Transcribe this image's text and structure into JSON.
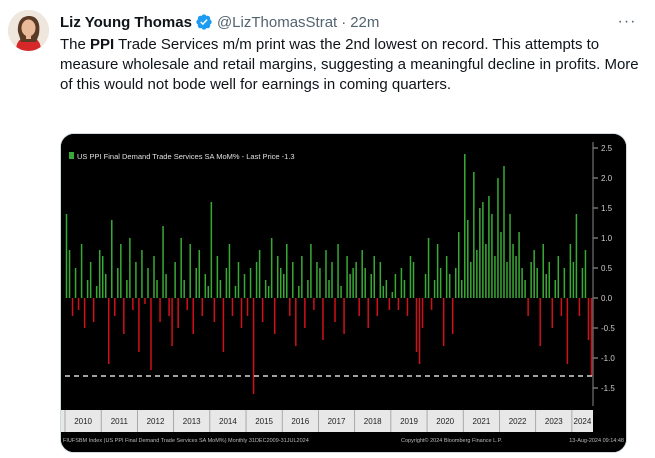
{
  "tweet": {
    "author_name": "Liz Young Thomas",
    "handle": "@LizThomasStrat",
    "separator": "·",
    "time": "22m",
    "more_label": "···",
    "text_before": "The ",
    "text_bold": "PPI",
    "text_after": " Trade Services m/m print was the 2nd lowest on record. This attempts to measure wholesale and retail margins, suggesting a meaningful decline in profits. More of this would not bode well for earnings in coming quarters."
  },
  "colors": {
    "verified": "#1d9bf0",
    "positive_bar": "#39a935",
    "negative_bar": "#d0101a",
    "chart_bg": "#000000"
  },
  "chart_data": {
    "type": "bar",
    "title": "US PPI Final Demand Trade Services SA MoM% - Last Price -1.3",
    "xlabel": "",
    "ylabel": "",
    "ylim": [
      -1.8,
      2.6
    ],
    "yticks": [
      2.5,
      2.0,
      1.5,
      1.0,
      0.5,
      0.0,
      -0.5,
      -1.0,
      -1.5
    ],
    "ytick_labels": [
      "2.5",
      "2.0",
      "1.5",
      "1.0",
      "0.5",
      "0.0",
      "-0.5",
      "-1.0",
      "-1.5"
    ],
    "reference_line": {
      "value": -1.3,
      "style": "dashed"
    },
    "years": [
      "2010",
      "2011",
      "2012",
      "2013",
      "2014",
      "2015",
      "2016",
      "2017",
      "2018",
      "2019",
      "2020",
      "2021",
      "2022",
      "2023",
      "2024"
    ],
    "footer_left": "FIUFSBM Index (US PPI Final Demand Trade Services SA MoM%) Monthly 31DEC2009-31JUL2024",
    "footer_center": "Copyright© 2024 Bloomberg Finance L.P.",
    "footer_right": "13-Aug-2024 09:14:48",
    "series": [
      {
        "name": "US PPI Final Demand Trade Services SA MoM%",
        "values": [
          1.4,
          0.8,
          -0.3,
          0.5,
          -0.2,
          0.9,
          -0.5,
          0.3,
          0.6,
          -0.4,
          0.2,
          0.8,
          0.7,
          0.4,
          -1.1,
          1.3,
          -0.3,
          0.5,
          0.9,
          -0.6,
          0.3,
          1.0,
          -0.2,
          0.6,
          -0.9,
          0.8,
          -0.1,
          0.5,
          -1.2,
          0.7,
          0.3,
          -0.4,
          1.2,
          0.4,
          -0.3,
          -0.8,
          0.6,
          -0.5,
          1.0,
          0.3,
          -0.2,
          0.9,
          -0.6,
          0.5,
          0.8,
          -0.3,
          0.4,
          0.2,
          1.6,
          -0.4,
          0.7,
          0.3,
          -0.9,
          0.5,
          0.9,
          -0.3,
          0.2,
          0.6,
          -0.5,
          0.4,
          -0.3,
          0.5,
          -1.6,
          0.6,
          0.8,
          -0.4,
          0.3,
          0.2,
          1.0,
          -0.6,
          0.7,
          0.5,
          0.4,
          0.9,
          -0.3,
          0.6,
          -0.8,
          0.2,
          0.7,
          -0.5,
          0.3,
          0.9,
          -0.2,
          0.6,
          0.5,
          -0.7,
          0.8,
          0.3,
          0.6,
          -0.4,
          0.9,
          0.2,
          -0.6,
          0.7,
          0.4,
          0.5,
          0.6,
          -0.3,
          0.8,
          0.5,
          -0.5,
          0.4,
          0.7,
          -0.3,
          0.6,
          0.2,
          0.3,
          -0.2,
          0.1,
          0.4,
          -0.2,
          0.5,
          0.3,
          -0.3,
          0.7,
          0.6,
          -0.9,
          -1.1,
          -0.5,
          0.4,
          1.0,
          -0.2,
          0.3,
          0.9,
          0.5,
          -0.8,
          0.7,
          0.4,
          -0.6,
          0.5,
          1.1,
          0.3,
          2.4,
          1.3,
          0.6,
          2.1,
          0.8,
          1.5,
          1.6,
          0.9,
          1.7,
          1.4,
          0.7,
          2.0,
          1.1,
          2.2,
          0.6,
          1.4,
          0.9,
          0.7,
          1.1,
          0.5,
          0.3,
          -0.3,
          0.6,
          0.8,
          0.5,
          -0.8,
          0.9,
          0.4,
          0.6,
          -0.5,
          0.3,
          0.7,
          -0.3,
          0.5,
          -1.1,
          0.9,
          0.6,
          1.4,
          -0.3,
          0.5,
          0.8,
          -0.7,
          -1.3
        ]
      }
    ]
  }
}
